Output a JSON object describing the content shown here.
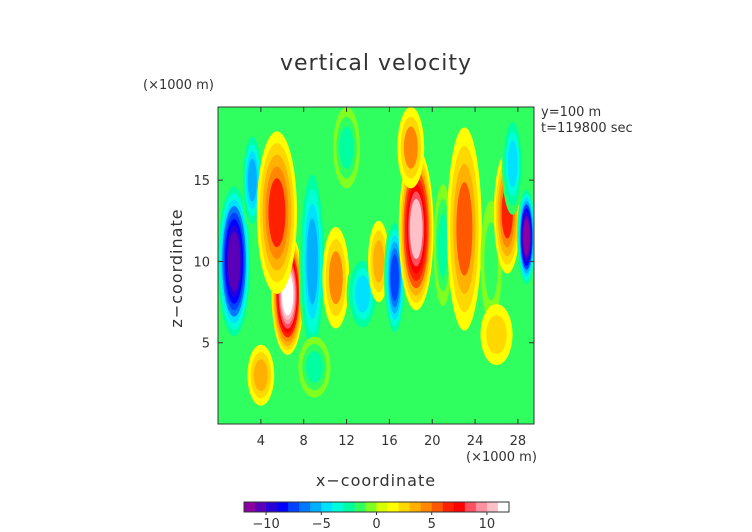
{
  "chart_data": {
    "type": "heatmap",
    "title": "vertical velocity",
    "xlabel": "x−coordinate",
    "ylabel": "z−coordinate",
    "x_unit": "(×1000 m)",
    "y_unit": "(×1000 m)",
    "annotations": [
      "y=100 m",
      "t=119800 sec"
    ],
    "xlim": [
      0,
      29.5
    ],
    "ylim": [
      0,
      19.5
    ],
    "x_ticks": [
      4,
      8,
      12,
      16,
      20,
      24,
      28
    ],
    "x_tick_labels": [
      "4",
      "8",
      "12",
      "16",
      "20",
      "24",
      "28"
    ],
    "y_ticks": [
      5,
      10,
      15
    ],
    "y_tick_labels": [
      "5",
      "10",
      "15"
    ],
    "colorbar": {
      "range": [
        -12,
        12
      ],
      "ticks": [
        -10,
        -5,
        0,
        5,
        10
      ],
      "tick_labels": [
        "−10",
        "−5",
        "0",
        "5",
        "10"
      ],
      "colors": [
        "#8a00a0",
        "#5a00b8",
        "#2800d8",
        "#0000ff",
        "#0040ff",
        "#0078ff",
        "#00b0ff",
        "#00e0ff",
        "#00ffd8",
        "#00ffa0",
        "#30ff60",
        "#80ff20",
        "#d8ff00",
        "#ffff00",
        "#ffd800",
        "#ffb000",
        "#ff8800",
        "#ff5800",
        "#ff2000",
        "#ff0000",
        "#ff5060",
        "#ff90a0",
        "#ffc0c8",
        "#ffffff"
      ]
    },
    "features": [
      {
        "x": 1.5,
        "z": 10.0,
        "value": -11,
        "sx": 1.3,
        "sz": 4.0
      },
      {
        "x": 3.2,
        "z": 15.0,
        "value": -6,
        "sx": 0.8,
        "sz": 2.5
      },
      {
        "x": 6.5,
        "z": 8.0,
        "value": 12,
        "sx": 1.2,
        "sz": 3.0
      },
      {
        "x": 5.5,
        "z": 13.0,
        "value": 6,
        "sx": 1.5,
        "sz": 4.0
      },
      {
        "x": 8.8,
        "z": 10.0,
        "value": -6,
        "sx": 1.0,
        "sz": 5.0
      },
      {
        "x": 11.0,
        "z": 9.0,
        "value": 4,
        "sx": 1.0,
        "sz": 2.5
      },
      {
        "x": 13.5,
        "z": 8.0,
        "value": -5,
        "sx": 1.2,
        "sz": 2.0
      },
      {
        "x": 15.0,
        "z": 10.0,
        "value": 3,
        "sx": 0.8,
        "sz": 2.0
      },
      {
        "x": 16.5,
        "z": 9.0,
        "value": -8,
        "sx": 0.8,
        "sz": 3.0
      },
      {
        "x": 18.5,
        "z": 12.0,
        "value": 10,
        "sx": 1.3,
        "sz": 4.0
      },
      {
        "x": 18.0,
        "z": 17.0,
        "value": 4,
        "sx": 1.0,
        "sz": 2.0
      },
      {
        "x": 21.0,
        "z": 11.0,
        "value": -3,
        "sx": 0.7,
        "sz": 3.0
      },
      {
        "x": 23.0,
        "z": 12.0,
        "value": 5,
        "sx": 1.3,
        "sz": 5.0
      },
      {
        "x": 25.5,
        "z": 10.0,
        "value": -2,
        "sx": 0.8,
        "sz": 3.0
      },
      {
        "x": 27.0,
        "z": 13.0,
        "value": 6,
        "sx": 1.0,
        "sz": 3.0
      },
      {
        "x": 28.8,
        "z": 11.5,
        "value": -12,
        "sx": 0.7,
        "sz": 2.5
      },
      {
        "x": 27.5,
        "z": 16.0,
        "value": -5,
        "sx": 0.8,
        "sz": 2.5
      },
      {
        "x": 4.0,
        "z": 3.0,
        "value": 3,
        "sx": 1.0,
        "sz": 1.5
      },
      {
        "x": 9.0,
        "z": 3.5,
        "value": -3,
        "sx": 1.2,
        "sz": 1.5
      },
      {
        "x": 12.0,
        "z": 17.0,
        "value": -3,
        "sx": 1.0,
        "sz": 2.0
      },
      {
        "x": 26.0,
        "z": 5.5,
        "value": 2,
        "sx": 1.2,
        "sz": 1.5
      }
    ]
  }
}
